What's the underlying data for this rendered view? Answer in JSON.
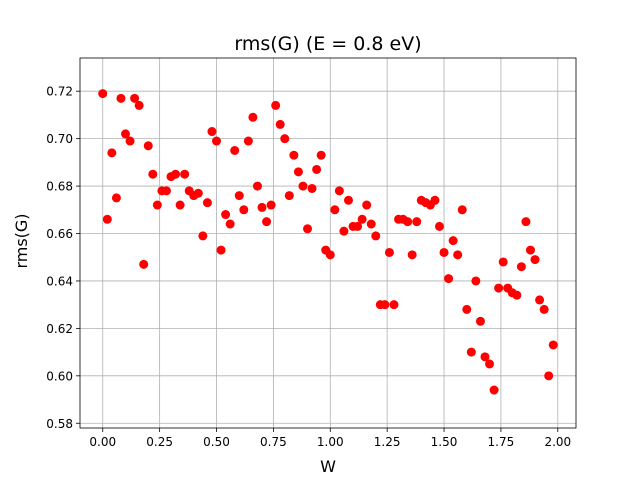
{
  "chart_data": {
    "type": "scatter",
    "title": "rms(G) (E = 0.8 eV)",
    "xlabel": "W",
    "ylabel": "rms(G)",
    "xlim": [
      -0.1,
      2.08
    ],
    "ylim": [
      0.578,
      0.734
    ],
    "grid": true,
    "marker_color": "#ff0000",
    "x_ticks": [
      0.0,
      0.25,
      0.5,
      0.75,
      1.0,
      1.25,
      1.5,
      1.75,
      2.0
    ],
    "x_tick_labels": [
      "0.00",
      "0.25",
      "0.50",
      "0.75",
      "1.00",
      "1.25",
      "1.50",
      "1.75",
      "2.00"
    ],
    "y_ticks": [
      0.58,
      0.6,
      0.62,
      0.64,
      0.66,
      0.68,
      0.7,
      0.72
    ],
    "y_tick_labels": [
      "0.58",
      "0.60",
      "0.62",
      "0.64",
      "0.66",
      "0.68",
      "0.70",
      "0.72"
    ],
    "points": [
      {
        "x": 0.0,
        "y": 0.719
      },
      {
        "x": 0.02,
        "y": 0.666
      },
      {
        "x": 0.04,
        "y": 0.694
      },
      {
        "x": 0.06,
        "y": 0.675
      },
      {
        "x": 0.08,
        "y": 0.717
      },
      {
        "x": 0.1,
        "y": 0.702
      },
      {
        "x": 0.12,
        "y": 0.699
      },
      {
        "x": 0.14,
        "y": 0.717
      },
      {
        "x": 0.16,
        "y": 0.714
      },
      {
        "x": 0.18,
        "y": 0.647
      },
      {
        "x": 0.2,
        "y": 0.697
      },
      {
        "x": 0.22,
        "y": 0.685
      },
      {
        "x": 0.24,
        "y": 0.672
      },
      {
        "x": 0.26,
        "y": 0.678
      },
      {
        "x": 0.28,
        "y": 0.678
      },
      {
        "x": 0.3,
        "y": 0.684
      },
      {
        "x": 0.32,
        "y": 0.685
      },
      {
        "x": 0.34,
        "y": 0.672
      },
      {
        "x": 0.36,
        "y": 0.685
      },
      {
        "x": 0.38,
        "y": 0.678
      },
      {
        "x": 0.4,
        "y": 0.676
      },
      {
        "x": 0.42,
        "y": 0.677
      },
      {
        "x": 0.44,
        "y": 0.659
      },
      {
        "x": 0.46,
        "y": 0.673
      },
      {
        "x": 0.48,
        "y": 0.703
      },
      {
        "x": 0.5,
        "y": 0.699
      },
      {
        "x": 0.52,
        "y": 0.653
      },
      {
        "x": 0.54,
        "y": 0.668
      },
      {
        "x": 0.56,
        "y": 0.664
      },
      {
        "x": 0.58,
        "y": 0.695
      },
      {
        "x": 0.6,
        "y": 0.676
      },
      {
        "x": 0.62,
        "y": 0.67
      },
      {
        "x": 0.64,
        "y": 0.699
      },
      {
        "x": 0.66,
        "y": 0.709
      },
      {
        "x": 0.68,
        "y": 0.68
      },
      {
        "x": 0.7,
        "y": 0.671
      },
      {
        "x": 0.72,
        "y": 0.665
      },
      {
        "x": 0.74,
        "y": 0.672
      },
      {
        "x": 0.76,
        "y": 0.714
      },
      {
        "x": 0.78,
        "y": 0.706
      },
      {
        "x": 0.8,
        "y": 0.7
      },
      {
        "x": 0.82,
        "y": 0.676
      },
      {
        "x": 0.84,
        "y": 0.693
      },
      {
        "x": 0.86,
        "y": 0.686
      },
      {
        "x": 0.88,
        "y": 0.68
      },
      {
        "x": 0.9,
        "y": 0.662
      },
      {
        "x": 0.92,
        "y": 0.679
      },
      {
        "x": 0.94,
        "y": 0.687
      },
      {
        "x": 0.96,
        "y": 0.693
      },
      {
        "x": 0.98,
        "y": 0.653
      },
      {
        "x": 1.0,
        "y": 0.651
      },
      {
        "x": 1.02,
        "y": 0.67
      },
      {
        "x": 1.04,
        "y": 0.678
      },
      {
        "x": 1.06,
        "y": 0.661
      },
      {
        "x": 1.08,
        "y": 0.674
      },
      {
        "x": 1.1,
        "y": 0.663
      },
      {
        "x": 1.12,
        "y": 0.663
      },
      {
        "x": 1.14,
        "y": 0.666
      },
      {
        "x": 1.16,
        "y": 0.672
      },
      {
        "x": 1.18,
        "y": 0.664
      },
      {
        "x": 1.2,
        "y": 0.659
      },
      {
        "x": 1.22,
        "y": 0.63
      },
      {
        "x": 1.24,
        "y": 0.63
      },
      {
        "x": 1.26,
        "y": 0.652
      },
      {
        "x": 1.28,
        "y": 0.63
      },
      {
        "x": 1.3,
        "y": 0.666
      },
      {
        "x": 1.32,
        "y": 0.666
      },
      {
        "x": 1.34,
        "y": 0.665
      },
      {
        "x": 1.36,
        "y": 0.651
      },
      {
        "x": 1.38,
        "y": 0.665
      },
      {
        "x": 1.4,
        "y": 0.674
      },
      {
        "x": 1.42,
        "y": 0.673
      },
      {
        "x": 1.44,
        "y": 0.672
      },
      {
        "x": 1.46,
        "y": 0.674
      },
      {
        "x": 1.48,
        "y": 0.663
      },
      {
        "x": 1.5,
        "y": 0.652
      },
      {
        "x": 1.52,
        "y": 0.641
      },
      {
        "x": 1.54,
        "y": 0.657
      },
      {
        "x": 1.56,
        "y": 0.651
      },
      {
        "x": 1.58,
        "y": 0.67
      },
      {
        "x": 1.6,
        "y": 0.628
      },
      {
        "x": 1.62,
        "y": 0.61
      },
      {
        "x": 1.64,
        "y": 0.64
      },
      {
        "x": 1.66,
        "y": 0.623
      },
      {
        "x": 1.68,
        "y": 0.608
      },
      {
        "x": 1.7,
        "y": 0.605
      },
      {
        "x": 1.72,
        "y": 0.594
      },
      {
        "x": 1.74,
        "y": 0.637
      },
      {
        "x": 1.76,
        "y": 0.648
      },
      {
        "x": 1.78,
        "y": 0.637
      },
      {
        "x": 1.8,
        "y": 0.635
      },
      {
        "x": 1.82,
        "y": 0.634
      },
      {
        "x": 1.84,
        "y": 0.646
      },
      {
        "x": 1.86,
        "y": 0.665
      },
      {
        "x": 1.88,
        "y": 0.653
      },
      {
        "x": 1.9,
        "y": 0.649
      },
      {
        "x": 1.92,
        "y": 0.632
      },
      {
        "x": 1.94,
        "y": 0.628
      },
      {
        "x": 1.96,
        "y": 0.6
      },
      {
        "x": 1.98,
        "y": 0.613
      }
    ]
  }
}
